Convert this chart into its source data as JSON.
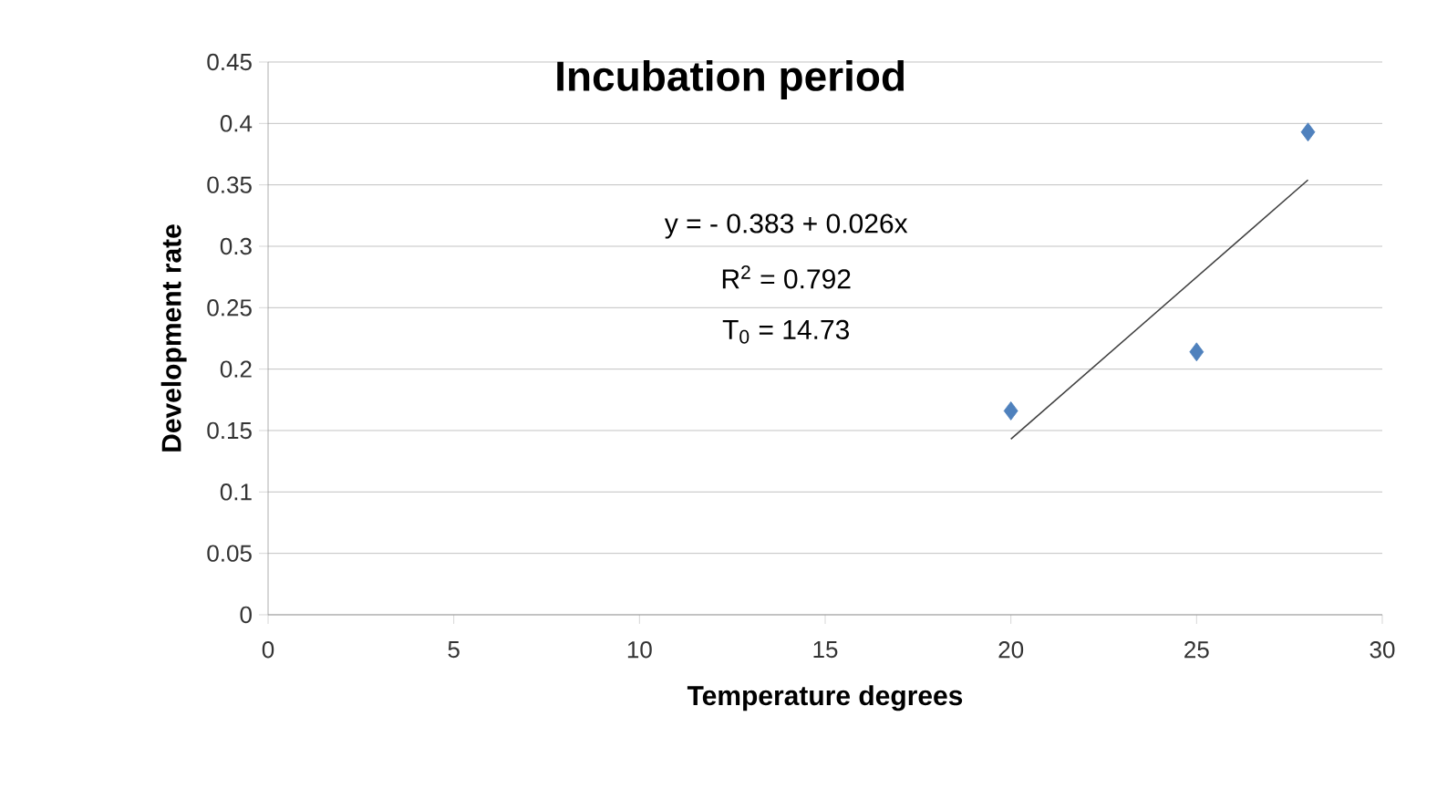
{
  "chart_data": {
    "type": "scatter",
    "title": "Incubation period",
    "xlabel": "Temperature degrees",
    "ylabel": "Development rate",
    "annotations": [
      "y = - 0.383 + 0.026x",
      "R$^{2}$ = 0.792",
      "T$_{0}$ =  14.73"
    ],
    "xlim": [
      0,
      30
    ],
    "xticks": [
      0,
      5,
      10,
      15,
      20,
      25,
      30
    ],
    "ylim": [
      0,
      0.45
    ],
    "yticks": [
      0,
      0.05,
      0.1,
      0.15,
      0.2,
      0.25,
      0.3,
      0.35,
      0.4,
      0.45
    ],
    "grid": "y",
    "marker": "diamond",
    "series": [
      {
        "color": "#4f81bd",
        "x": [
          20,
          25,
          28
        ],
        "values": [
          0.166,
          0.214,
          0.393
        ]
      },
      {
        "type": "line",
        "marker": "none",
        "color": "#404040",
        "x": [
          20,
          28
        ],
        "values": [
          0.143,
          0.354
        ]
      }
    ]
  }
}
